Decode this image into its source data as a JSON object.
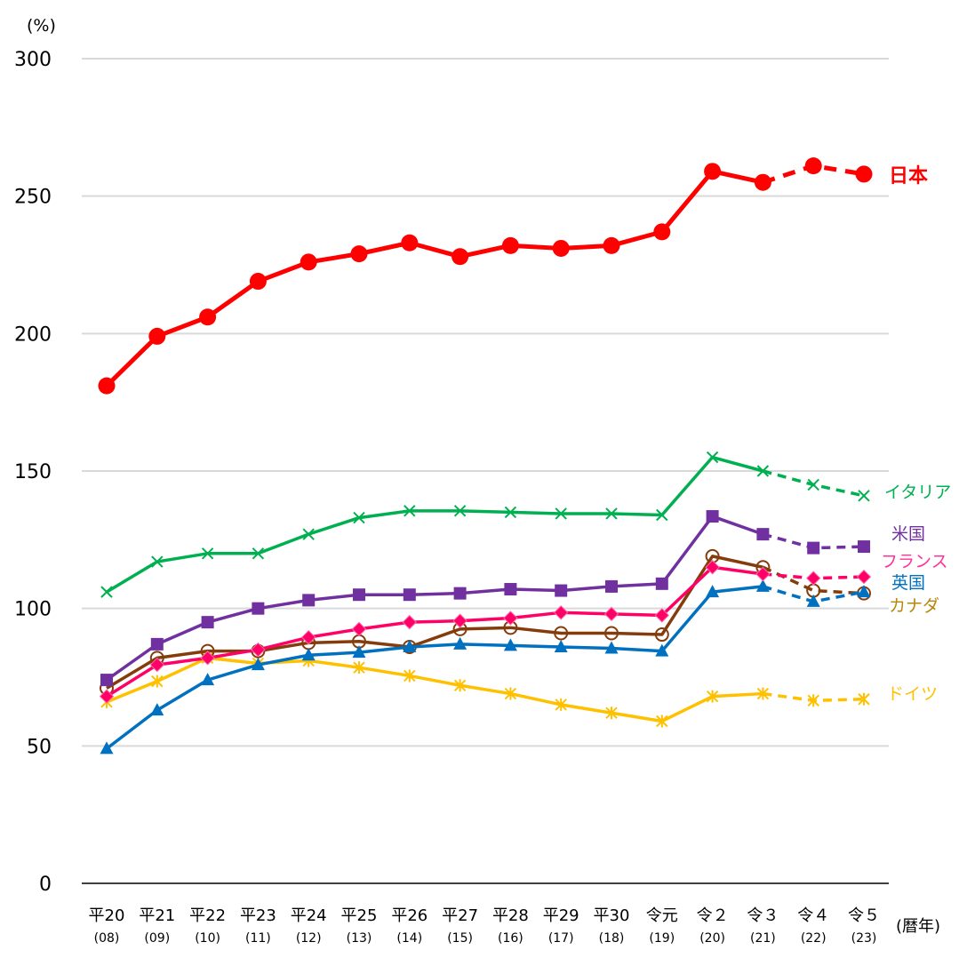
{
  "chart_data": {
    "type": "line",
    "title": "",
    "ylabel": "(%)",
    "xlabel": "(暦年)",
    "ylim": [
      0,
      300
    ],
    "yticks": [
      0,
      50,
      100,
      150,
      200,
      250,
      300
    ],
    "grid": true,
    "categories": [
      {
        "era": "平20",
        "year": "(08)"
      },
      {
        "era": "平21",
        "year": "(09)"
      },
      {
        "era": "平22",
        "year": "(10)"
      },
      {
        "era": "平23",
        "year": "(11)"
      },
      {
        "era": "平24",
        "year": "(12)"
      },
      {
        "era": "平25",
        "year": "(13)"
      },
      {
        "era": "平26",
        "year": "(14)"
      },
      {
        "era": "平27",
        "year": "(15)"
      },
      {
        "era": "平28",
        "year": "(16)"
      },
      {
        "era": "平29",
        "year": "(17)"
      },
      {
        "era": "平30",
        "year": "(18)"
      },
      {
        "era": "令元",
        "year": "(19)"
      },
      {
        "era": "令２",
        "year": "(20)"
      },
      {
        "era": "令３",
        "year": "(21)"
      },
      {
        "era": "令４",
        "year": "(22)"
      },
      {
        "era": "令５",
        "year": "(23)"
      }
    ],
    "dashed_from_index": 13,
    "legend_placement": "right-end labels",
    "series": [
      {
        "name": "日本",
        "color": "#ff0000",
        "marker": "circle",
        "values": [
          181,
          199,
          206,
          219,
          226,
          229,
          233,
          228,
          232,
          231,
          232,
          237,
          259,
          255,
          261,
          258
        ]
      },
      {
        "name": "イタリア",
        "color": "#00b050",
        "marker": "x",
        "values": [
          106,
          117,
          120,
          120,
          127,
          133,
          135.5,
          135.5,
          135,
          134.5,
          134.5,
          134,
          155,
          150,
          145,
          141
        ]
      },
      {
        "name": "米国",
        "color": "#7030a0",
        "marker": "square",
        "values": [
          74,
          87,
          95,
          100,
          103,
          105,
          105,
          105.5,
          107,
          106.5,
          108,
          109,
          133.5,
          127,
          122,
          122.5
        ]
      },
      {
        "name": "フランス",
        "color": "#ff0066",
        "marker": "diamond",
        "values": [
          68,
          79.5,
          82,
          85,
          89.5,
          92.5,
          95,
          95.5,
          96.5,
          98.5,
          98,
          97.5,
          115,
          112.5,
          111,
          111.5
        ]
      },
      {
        "name": "英国",
        "color": "#0070c0",
        "marker": "triangle",
        "values": [
          49,
          63,
          74,
          79.5,
          83,
          84,
          86,
          87,
          86.5,
          86,
          85.5,
          84.5,
          106,
          108,
          102.5,
          106
        ]
      },
      {
        "name": "カナダ",
        "color": "#843c0c",
        "marker": "open-circle",
        "values": [
          71,
          82,
          84.5,
          84.5,
          87.5,
          88,
          86,
          92.5,
          93,
          91,
          91,
          90.5,
          119,
          115,
          106.5,
          105.5
        ]
      },
      {
        "name": "ドイツ",
        "color": "#ffc000",
        "marker": "asterisk",
        "values": [
          66,
          73.5,
          82,
          80,
          81,
          78.5,
          75.5,
          72,
          69,
          65,
          62,
          59,
          68,
          69,
          66.5,
          67
        ]
      }
    ],
    "label_colors": {
      "日本": "#ff0000",
      "イタリア": "#00b050",
      "米国": "#7030a0",
      "フランス": "#ff3399",
      "英国": "#0070c0",
      "カナダ": "#b8860b",
      "ドイツ": "#ffc000"
    }
  }
}
